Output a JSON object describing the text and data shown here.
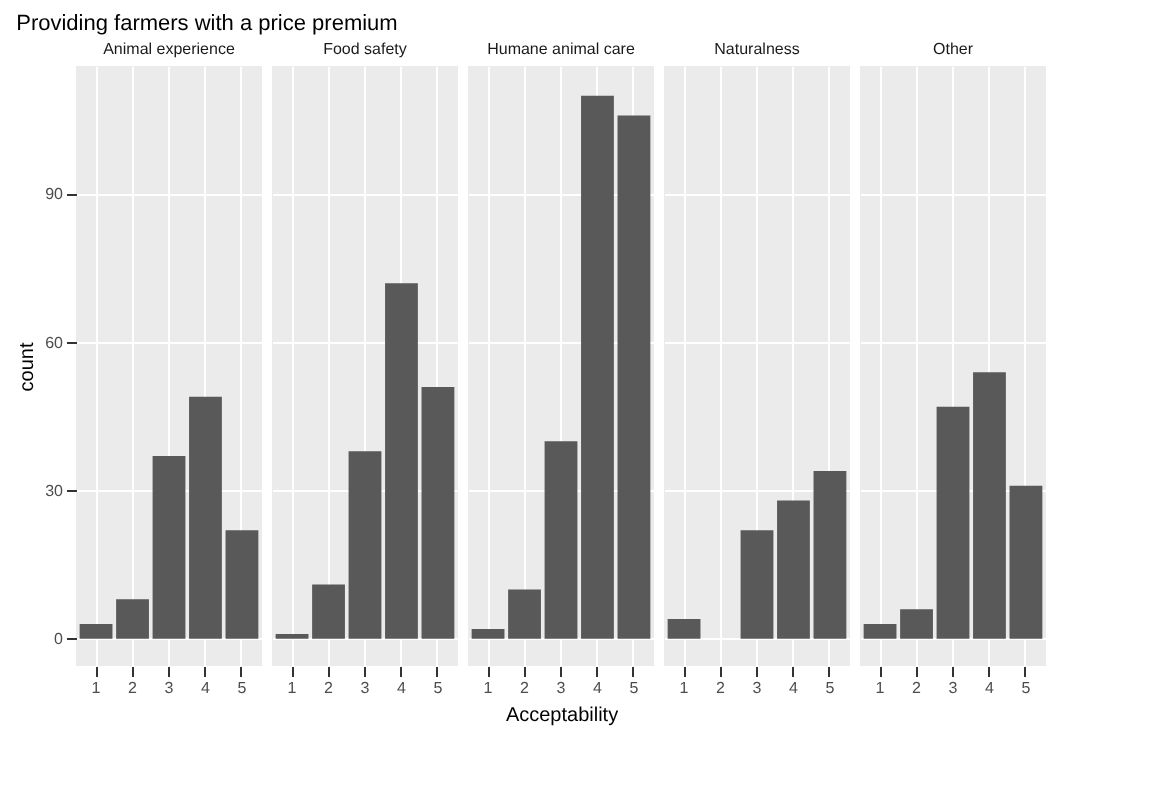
{
  "chart_data": [
    {
      "type": "bar",
      "title": "Providing farmers with a price premium",
      "subtitle": "Animal experience",
      "ylabel": "count",
      "categories": [
        "1",
        "2",
        "3",
        "4",
        "5"
      ],
      "values": [
        3,
        8,
        37,
        49,
        22
      ],
      "color": "#595959",
      "ylim": [
        -5.5,
        116
      ],
      "yticks": [
        0,
        30,
        60,
        90
      ],
      "grid": true
    },
    {
      "type": "bar",
      "subtitle": "Food safety",
      "categories": [
        "1",
        "2",
        "3",
        "4",
        "5"
      ],
      "values": [
        1,
        11,
        38,
        72,
        51
      ],
      "color": "#595959",
      "ylim": [
        -5.5,
        116
      ],
      "yticks": [
        0,
        30,
        60,
        90
      ],
      "grid": true,
      "tick_labels": "x"
    },
    {
      "type": "bar",
      "subtitle": "Humane animal care",
      "xlabel": "Acceptability",
      "categories": [
        "1",
        "2",
        "3",
        "4",
        "5"
      ],
      "values": [
        2,
        10,
        40,
        110,
        106
      ],
      "color": "#595959",
      "ylim": [
        -5.5,
        116
      ],
      "yticks": [
        0,
        30,
        60,
        90
      ],
      "grid": true,
      "tick_labels": "x"
    },
    {
      "type": "bar",
      "subtitle": "Naturalness",
      "categories": [
        "1",
        "2",
        "3",
        "4",
        "5"
      ],
      "values": [
        4,
        0,
        22,
        28,
        34
      ],
      "color": "#595959",
      "ylim": [
        -5.5,
        116
      ],
      "yticks": [
        0,
        30,
        60,
        90
      ],
      "grid": true,
      "tick_labels": "x"
    },
    {
      "type": "bar",
      "subtitle": "Other",
      "categories": [
        "1",
        "2",
        "3",
        "4",
        "5"
      ],
      "values": [
        3,
        6,
        47,
        54,
        31
      ],
      "color": "#595959",
      "ylim": [
        -5.5,
        116
      ],
      "yticks": [
        0,
        30,
        60,
        90
      ],
      "grid": true,
      "tick_labels": "x"
    }
  ]
}
